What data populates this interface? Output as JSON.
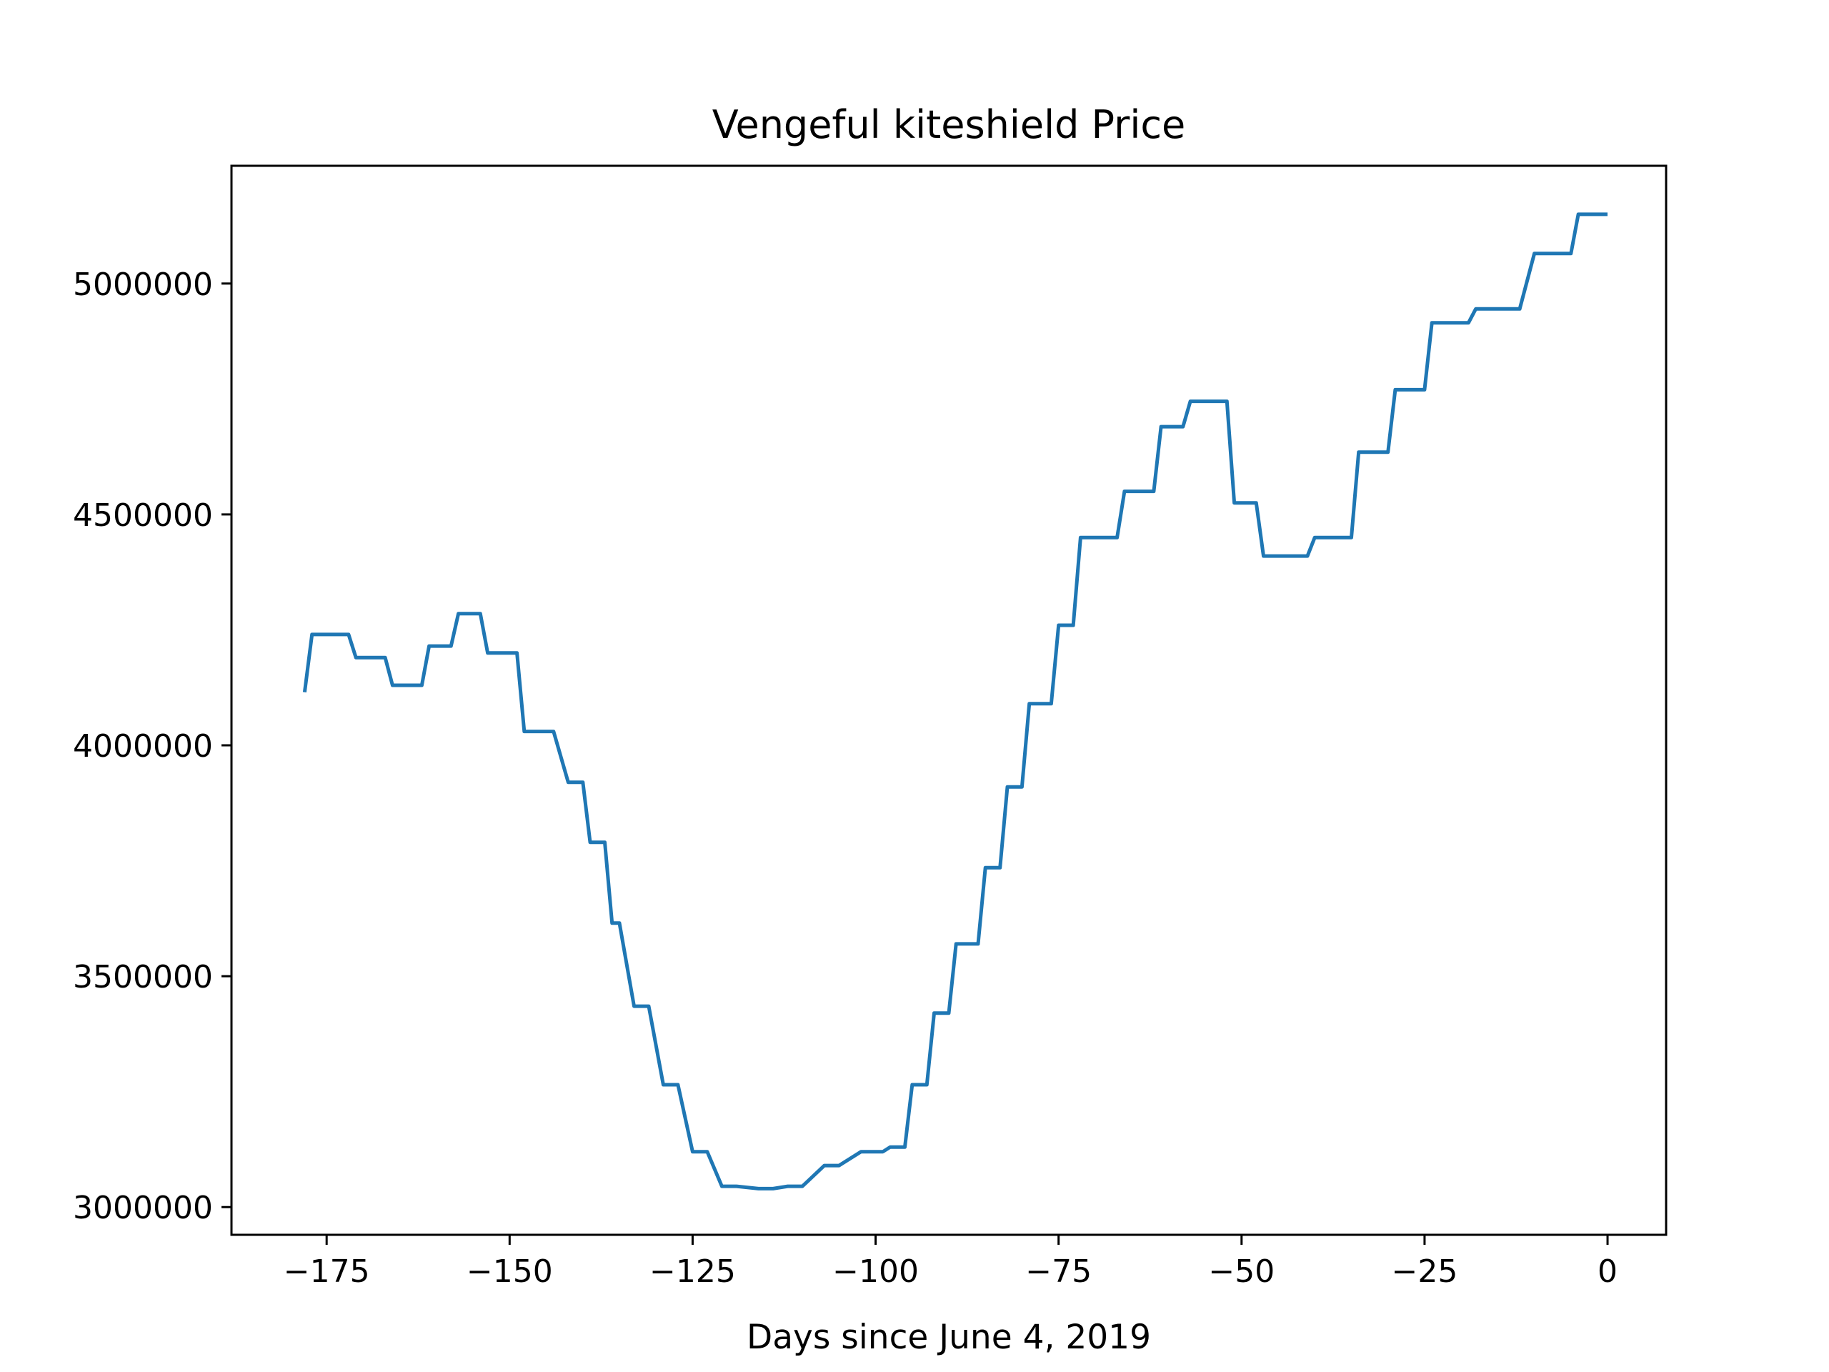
{
  "chart_data": {
    "type": "line",
    "title": "Vengeful kiteshield Price",
    "xlabel": "Days since June 4, 2019",
    "ylabel": "",
    "xlim": [
      -188,
      8
    ],
    "ylim": [
      2940000,
      5255000
    ],
    "xticks": [
      -175,
      -150,
      -125,
      -100,
      -75,
      -50,
      -25,
      0
    ],
    "xtick_labels": [
      "−175",
      "−150",
      "−125",
      "−100",
      "−75",
      "−50",
      "−25",
      "0"
    ],
    "yticks": [
      3000000,
      3500000,
      4000000,
      4500000,
      5000000
    ],
    "ytick_labels": [
      "3000000",
      "3500000",
      "4000000",
      "4500000",
      "5000000"
    ],
    "grid": false,
    "line_color": "#1f77b4",
    "series": [
      {
        "x": [
          -178,
          -177,
          -176,
          -173,
          -172,
          -171,
          -168,
          -167,
          -166,
          -163,
          -162,
          -161,
          -159,
          -158,
          -157,
          -155,
          -154,
          -153,
          -150,
          -149,
          -148,
          -146,
          -145,
          -144,
          -142,
          -141,
          -140,
          -139,
          -138,
          -137,
          -136,
          -135,
          -133,
          -132,
          -131,
          -129,
          -128,
          -127,
          -125,
          -124,
          -123,
          -121,
          -120,
          -119,
          -116,
          -115,
          -114,
          -112,
          -111,
          -110,
          -107,
          -106,
          -105,
          -102,
          -101,
          -100,
          -99,
          -98,
          -97,
          -96,
          -95,
          -94,
          -93,
          -92,
          -91,
          -90,
          -89,
          -88,
          -87,
          -86,
          -85,
          -84,
          -83,
          -82,
          -81,
          -80,
          -79,
          -78,
          -77,
          -76,
          -75,
          -74,
          -73,
          -72,
          -71,
          -70,
          -67,
          -66,
          -65,
          -62,
          -61,
          -60,
          -58,
          -57,
          -56,
          -52,
          -51,
          -50,
          -48,
          -47,
          -46,
          -42,
          -41,
          -40,
          -36,
          -35,
          -34,
          -31,
          -30,
          -29,
          -26,
          -25,
          -24,
          -20,
          -19,
          -18,
          -14,
          -13,
          -12,
          -10,
          -9,
          -8,
          -5,
          -4,
          -3,
          -1,
          0
        ],
        "y": [
          4115000,
          4240000,
          4240000,
          4240000,
          4240000,
          4190000,
          4190000,
          4190000,
          4130000,
          4130000,
          4130000,
          4215000,
          4215000,
          4215000,
          4285000,
          4285000,
          4285000,
          4200000,
          4200000,
          4200000,
          4030000,
          4030000,
          4030000,
          4030000,
          3920000,
          3920000,
          3920000,
          3790000,
          3790000,
          3790000,
          3615000,
          3615000,
          3435000,
          3435000,
          3435000,
          3265000,
          3265000,
          3265000,
          3120000,
          3120000,
          3120000,
          3045000,
          3045000,
          3045000,
          3040000,
          3040000,
          3040000,
          3045000,
          3045000,
          3045000,
          3090000,
          3090000,
          3090000,
          3120000,
          3120000,
          3120000,
          3120000,
          3130000,
          3130000,
          3130000,
          3265000,
          3265000,
          3265000,
          3420000,
          3420000,
          3420000,
          3570000,
          3570000,
          3570000,
          3570000,
          3735000,
          3735000,
          3735000,
          3910000,
          3910000,
          3910000,
          4090000,
          4090000,
          4090000,
          4090000,
          4260000,
          4260000,
          4260000,
          4450000,
          4450000,
          4450000,
          4450000,
          4550000,
          4550000,
          4550000,
          4690000,
          4690000,
          4690000,
          4745000,
          4745000,
          4745000,
          4525000,
          4525000,
          4525000,
          4410000,
          4410000,
          4410000,
          4410000,
          4450000,
          4450000,
          4450000,
          4635000,
          4635000,
          4635000,
          4770000,
          4770000,
          4770000,
          4915000,
          4915000,
          4915000,
          4945000,
          4945000,
          4945000,
          4945000,
          5065000,
          5065000,
          5065000,
          5065000,
          5150000,
          5150000,
          5150000,
          5150000
        ]
      }
    ]
  }
}
